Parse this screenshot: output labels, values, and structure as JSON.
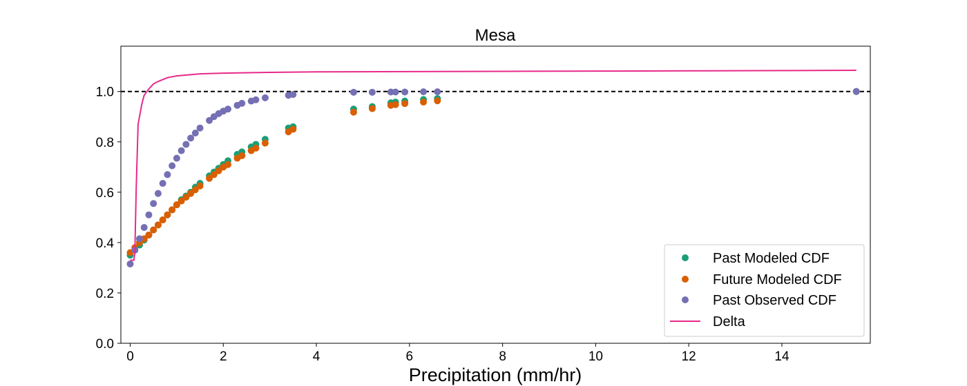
{
  "chart_data": {
    "type": "scatter",
    "title": "Mesa",
    "xlabel": "Precipitation (mm/hr)",
    "ylabel": "",
    "xlim": [
      -0.2,
      15.9
    ],
    "ylim": [
      0.0,
      1.18
    ],
    "x_ticks": [
      0,
      2,
      4,
      6,
      8,
      10,
      12,
      14
    ],
    "y_ticks": [
      0.0,
      0.2,
      0.4,
      0.6,
      0.8,
      1.0
    ],
    "x_tick_labels": [
      "0",
      "2",
      "4",
      "6",
      "8",
      "10",
      "12",
      "14"
    ],
    "y_tick_labels": [
      "0.0",
      "0.2",
      "0.4",
      "0.6",
      "0.8",
      "1.0"
    ],
    "reference_line": {
      "y": 1.0,
      "style": "dashed",
      "color": "#000000"
    },
    "legend": {
      "position": "lower-right"
    },
    "series": [
      {
        "name": "Past Modeled CDF",
        "kind": "scatter",
        "color": "#1b9e77",
        "points": [
          [
            0.0,
            0.35
          ],
          [
            0.1,
            0.37
          ],
          [
            0.2,
            0.39
          ],
          [
            0.3,
            0.41
          ],
          [
            0.4,
            0.43
          ],
          [
            0.5,
            0.45
          ],
          [
            0.6,
            0.47
          ],
          [
            0.7,
            0.49
          ],
          [
            0.8,
            0.51
          ],
          [
            0.9,
            0.53
          ],
          [
            1.0,
            0.55
          ],
          [
            1.1,
            0.57
          ],
          [
            1.2,
            0.585
          ],
          [
            1.3,
            0.6
          ],
          [
            1.4,
            0.62
          ],
          [
            1.5,
            0.635
          ],
          [
            1.7,
            0.665
          ],
          [
            1.8,
            0.68
          ],
          [
            1.9,
            0.695
          ],
          [
            2.0,
            0.71
          ],
          [
            2.1,
            0.725
          ],
          [
            2.3,
            0.75
          ],
          [
            2.4,
            0.76
          ],
          [
            2.6,
            0.78
          ],
          [
            2.7,
            0.79
          ],
          [
            2.9,
            0.81
          ],
          [
            3.4,
            0.855
          ],
          [
            3.5,
            0.86
          ],
          [
            4.8,
            0.93
          ],
          [
            5.2,
            0.94
          ],
          [
            5.6,
            0.955
          ],
          [
            5.7,
            0.958
          ],
          [
            5.9,
            0.962
          ],
          [
            6.3,
            0.968
          ],
          [
            6.6,
            0.972
          ],
          [
            15.6,
            1.0
          ]
        ]
      },
      {
        "name": "Future Modeled CDF",
        "kind": "scatter",
        "color": "#d95f02",
        "points": [
          [
            0.0,
            0.36
          ],
          [
            0.1,
            0.38
          ],
          [
            0.2,
            0.4
          ],
          [
            0.3,
            0.415
          ],
          [
            0.4,
            0.43
          ],
          [
            0.5,
            0.45
          ],
          [
            0.6,
            0.47
          ],
          [
            0.7,
            0.49
          ],
          [
            0.8,
            0.51
          ],
          [
            0.9,
            0.53
          ],
          [
            1.0,
            0.55
          ],
          [
            1.1,
            0.565
          ],
          [
            1.2,
            0.58
          ],
          [
            1.3,
            0.595
          ],
          [
            1.4,
            0.61
          ],
          [
            1.5,
            0.625
          ],
          [
            1.7,
            0.655
          ],
          [
            1.8,
            0.67
          ],
          [
            1.9,
            0.685
          ],
          [
            2.0,
            0.7
          ],
          [
            2.1,
            0.71
          ],
          [
            2.3,
            0.735
          ],
          [
            2.4,
            0.745
          ],
          [
            2.6,
            0.765
          ],
          [
            2.7,
            0.775
          ],
          [
            2.9,
            0.795
          ],
          [
            3.4,
            0.84
          ],
          [
            3.5,
            0.85
          ],
          [
            4.8,
            0.918
          ],
          [
            5.2,
            0.932
          ],
          [
            5.6,
            0.945
          ],
          [
            5.7,
            0.948
          ],
          [
            5.9,
            0.952
          ],
          [
            6.3,
            0.958
          ],
          [
            6.6,
            0.963
          ],
          [
            15.6,
            1.0
          ]
        ]
      },
      {
        "name": "Past Observed CDF",
        "kind": "scatter",
        "color": "#7570b3",
        "points": [
          [
            0.0,
            0.315
          ],
          [
            0.1,
            0.37
          ],
          [
            0.2,
            0.415
          ],
          [
            0.3,
            0.46
          ],
          [
            0.4,
            0.51
          ],
          [
            0.5,
            0.555
          ],
          [
            0.6,
            0.595
          ],
          [
            0.7,
            0.635
          ],
          [
            0.8,
            0.67
          ],
          [
            0.9,
            0.705
          ],
          [
            1.0,
            0.735
          ],
          [
            1.1,
            0.765
          ],
          [
            1.2,
            0.79
          ],
          [
            1.3,
            0.815
          ],
          [
            1.4,
            0.835
          ],
          [
            1.5,
            0.855
          ],
          [
            1.7,
            0.885
          ],
          [
            1.8,
            0.9
          ],
          [
            1.9,
            0.912
          ],
          [
            2.0,
            0.922
          ],
          [
            2.1,
            0.93
          ],
          [
            2.3,
            0.945
          ],
          [
            2.4,
            0.953
          ],
          [
            2.6,
            0.962
          ],
          [
            2.7,
            0.967
          ],
          [
            2.9,
            0.975
          ],
          [
            3.4,
            0.985
          ],
          [
            3.5,
            0.988
          ],
          [
            4.8,
            0.997
          ],
          [
            5.2,
            0.997
          ],
          [
            5.6,
            0.998
          ],
          [
            5.7,
            0.998
          ],
          [
            5.9,
            0.998
          ],
          [
            6.3,
            0.999
          ],
          [
            6.6,
            0.999
          ],
          [
            15.6,
            1.0
          ]
        ]
      },
      {
        "name": "Delta",
        "kind": "line",
        "color": "#e7298a",
        "points": [
          [
            0.0,
            0.33
          ],
          [
            0.05,
            0.33
          ],
          [
            0.08,
            0.33
          ],
          [
            0.1,
            0.36
          ],
          [
            0.13,
            0.62
          ],
          [
            0.17,
            0.87
          ],
          [
            0.2,
            0.9
          ],
          [
            0.25,
            0.95
          ],
          [
            0.3,
            0.985
          ],
          [
            0.4,
            1.01
          ],
          [
            0.5,
            1.03
          ],
          [
            0.6,
            1.04
          ],
          [
            0.8,
            1.055
          ],
          [
            1.0,
            1.062
          ],
          [
            1.5,
            1.07
          ],
          [
            2.0,
            1.073
          ],
          [
            3.0,
            1.076
          ],
          [
            4.0,
            1.078
          ],
          [
            6.0,
            1.079
          ],
          [
            8.0,
            1.08
          ],
          [
            10.0,
            1.081
          ],
          [
            12.0,
            1.082
          ],
          [
            14.0,
            1.083
          ],
          [
            15.6,
            1.084
          ]
        ]
      }
    ]
  }
}
